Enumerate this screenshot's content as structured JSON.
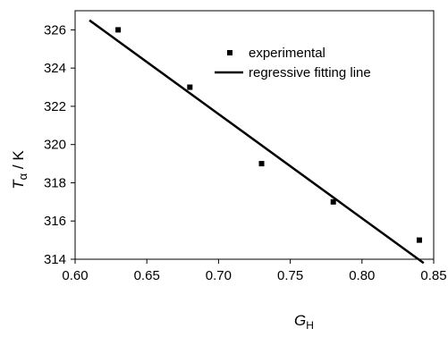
{
  "chart_data": {
    "type": "scatter",
    "title": "",
    "xlabel": {
      "main": "G",
      "sub": "H"
    },
    "ylabel": {
      "main": "T",
      "sub": "α",
      "unit": " / K"
    },
    "xlim": [
      0.6,
      0.85
    ],
    "ylim": [
      314,
      327
    ],
    "x_ticks": [
      "0.60",
      "0.65",
      "0.70",
      "0.75",
      "0.80",
      "0.85"
    ],
    "y_ticks": [
      "314",
      "316",
      "318",
      "320",
      "322",
      "324",
      "326"
    ],
    "grid": false,
    "legend_position": "top-right",
    "series": [
      {
        "name": "experimental",
        "kind": "points",
        "marker": "square",
        "x": [
          0.63,
          0.68,
          0.73,
          0.78,
          0.84
        ],
        "y": [
          326,
          323,
          319,
          317,
          315
        ]
      },
      {
        "name": "regressive fitting line",
        "kind": "line",
        "x": [
          0.61,
          0.843
        ],
        "y": [
          326.5,
          313.8
        ]
      }
    ]
  }
}
